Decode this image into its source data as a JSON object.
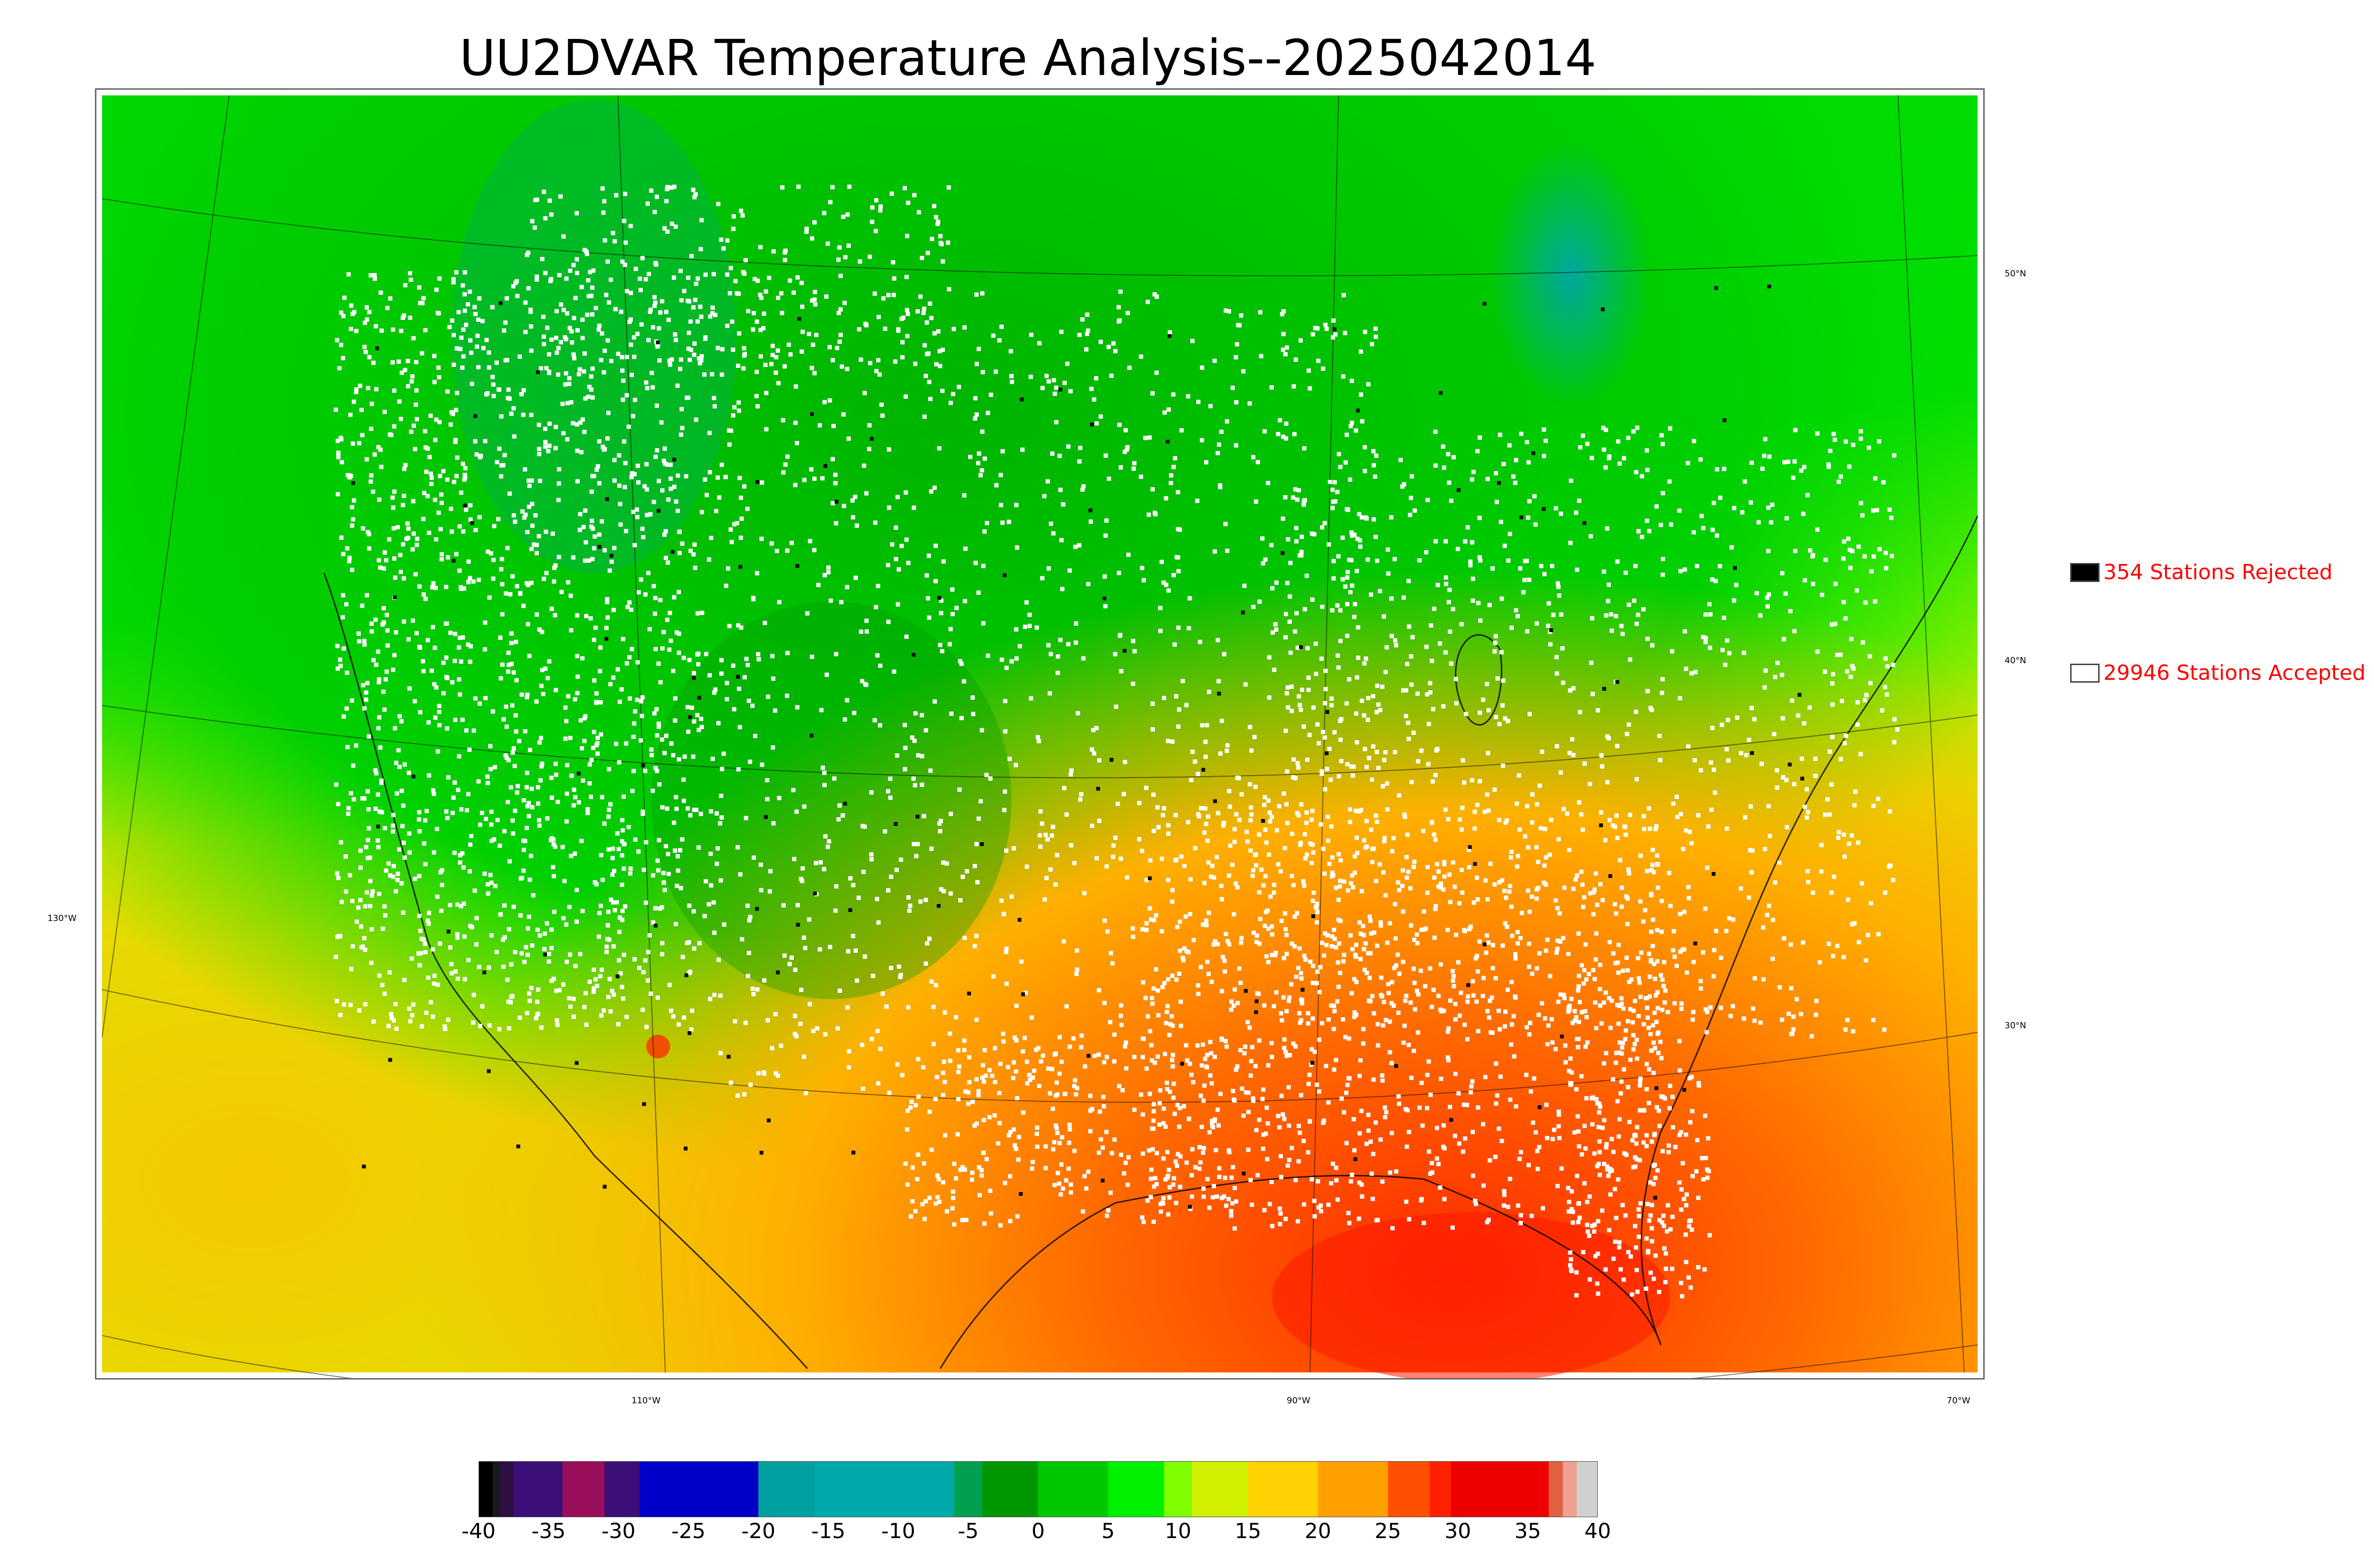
{
  "title": "UU2DVAR Temperature Analysis--2025042014",
  "map": {
    "lat_labels": [
      "50°N",
      "40°N",
      "30°N"
    ],
    "lon_labels": [
      "130°W",
      "110°W",
      "90°W",
      "70°W"
    ]
  },
  "legend": {
    "rejected": {
      "label": "354 Stations Rejected",
      "swatch_color": "#000000"
    },
    "accepted": {
      "label": "29946 Stations Accepted",
      "swatch_color": "#ffffff"
    }
  },
  "colorbar": {
    "tick_labels": [
      "-40",
      "-35",
      "-30",
      "-25",
      "-20",
      "-15",
      "-10",
      "-5",
      "0",
      "5",
      "10",
      "15",
      "20",
      "25",
      "30",
      "35",
      "40"
    ],
    "range": [
      -40,
      40
    ],
    "segments": [
      {
        "from": -40,
        "to": -39,
        "color": "#000000"
      },
      {
        "from": -39,
        "to": -38.5,
        "color": "#1a1a1a"
      },
      {
        "from": -38.5,
        "to": -37.5,
        "color": "#2d0f40"
      },
      {
        "from": -37.5,
        "to": -34,
        "color": "#3c0f78"
      },
      {
        "from": -34,
        "to": -31,
        "color": "#9b0f5a"
      },
      {
        "from": -31,
        "to": -28.5,
        "color": "#3c0f78"
      },
      {
        "from": -28.5,
        "to": -20,
        "color": "#0000c8"
      },
      {
        "from": -20,
        "to": -16,
        "color": "#00a0a0"
      },
      {
        "from": -16,
        "to": -6,
        "color": "#00aaaa"
      },
      {
        "from": -6,
        "to": -4,
        "color": "#00a050"
      },
      {
        "from": -4,
        "to": 0,
        "color": "#009600"
      },
      {
        "from": 0,
        "to": 5,
        "color": "#00c800"
      },
      {
        "from": 5,
        "to": 9,
        "color": "#00f000"
      },
      {
        "from": 9,
        "to": 11,
        "color": "#80ff00"
      },
      {
        "from": 11,
        "to": 15,
        "color": "#d0f000"
      },
      {
        "from": 15,
        "to": 20,
        "color": "#ffd200"
      },
      {
        "from": 20,
        "to": 25,
        "color": "#ffa000"
      },
      {
        "from": 25,
        "to": 28,
        "color": "#ff5000"
      },
      {
        "from": 28,
        "to": 29.5,
        "color": "#ff2000"
      },
      {
        "from": 29.5,
        "to": 36.5,
        "color": "#ee0000"
      },
      {
        "from": 36.5,
        "to": 37.5,
        "color": "#e06040"
      },
      {
        "from": 37.5,
        "to": 38.5,
        "color": "#f0a090"
      },
      {
        "from": 38.5,
        "to": 40,
        "color": "#d0d0d0"
      }
    ]
  }
}
